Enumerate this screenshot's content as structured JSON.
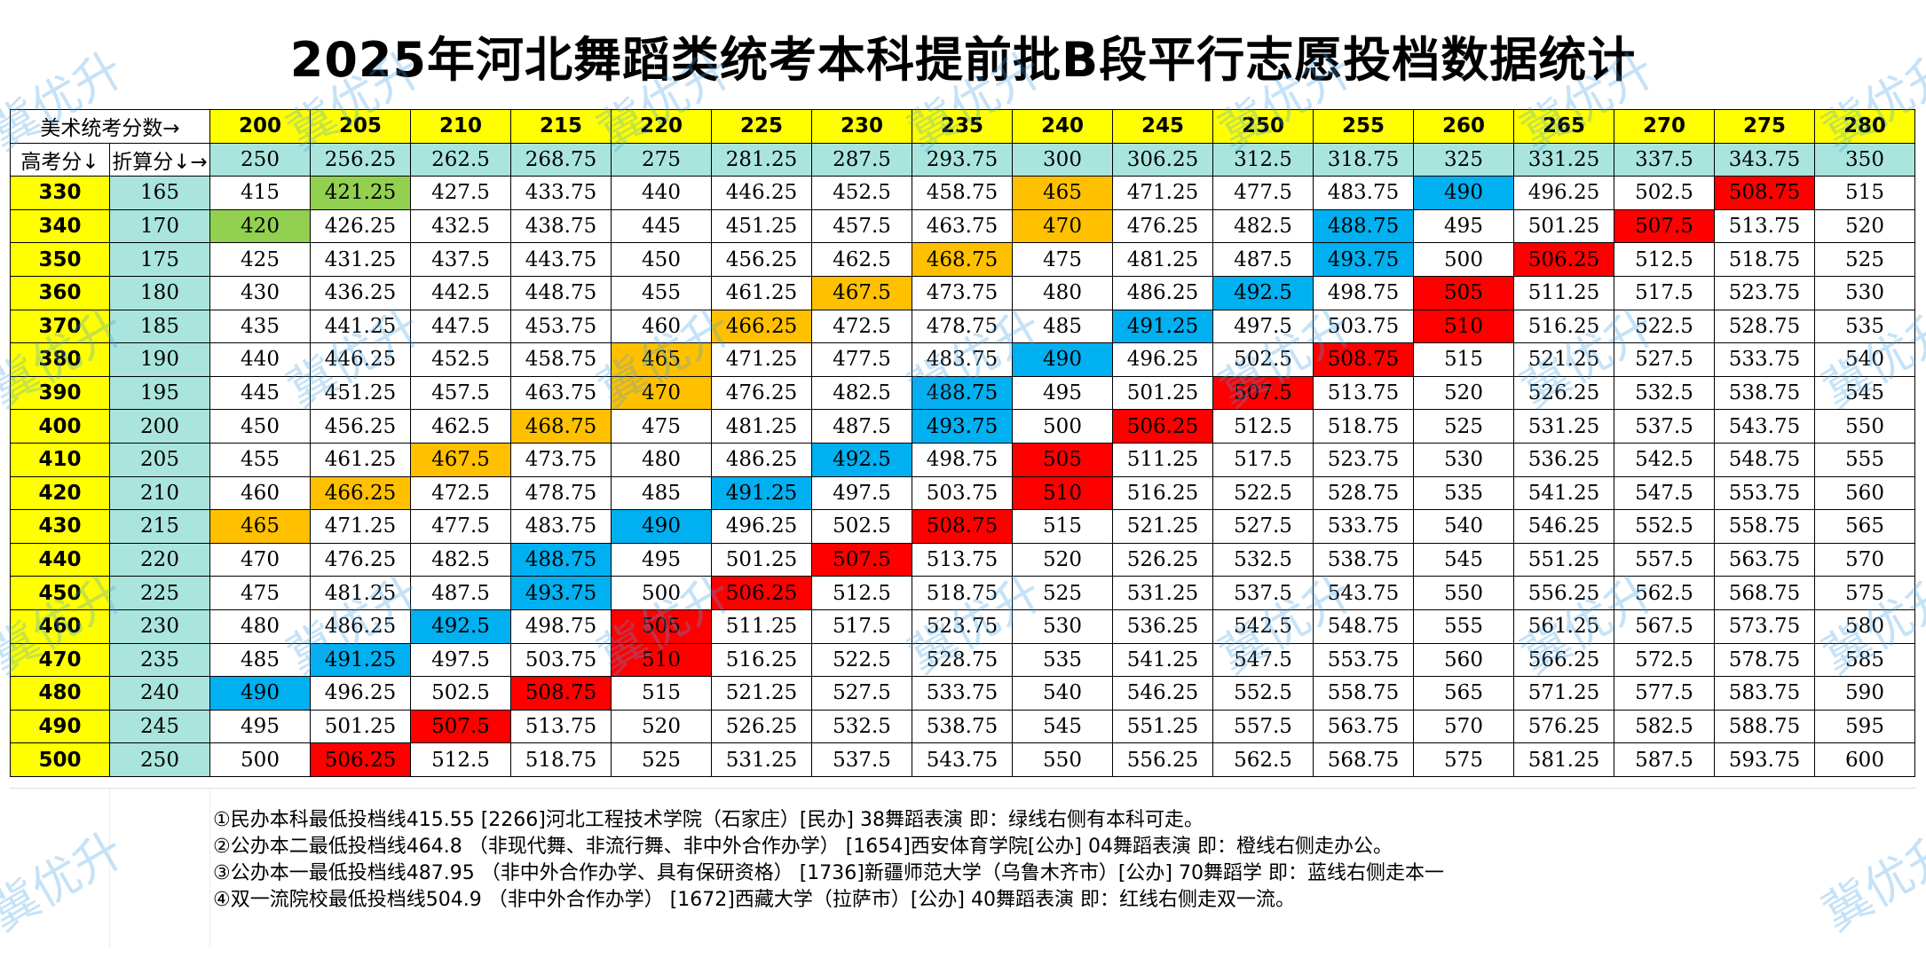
{
  "title": "2025年河北舞蹈类统考本科提前批B段平行志愿投档数据统计",
  "header": {
    "corner_top": "美术统考分数→",
    "corner_gaokao": "高考分↓",
    "corner_zhesuan": "折算分↓→"
  },
  "columns": [
    {
      "art": "200",
      "conv": "250"
    },
    {
      "art": "205",
      "conv": "256.25"
    },
    {
      "art": "210",
      "conv": "262.5"
    },
    {
      "art": "215",
      "conv": "268.75"
    },
    {
      "art": "220",
      "conv": "275"
    },
    {
      "art": "225",
      "conv": "281.25"
    },
    {
      "art": "230",
      "conv": "287.5"
    },
    {
      "art": "235",
      "conv": "293.75"
    },
    {
      "art": "240",
      "conv": "300"
    },
    {
      "art": "245",
      "conv": "306.25"
    },
    {
      "art": "250",
      "conv": "312.5"
    },
    {
      "art": "255",
      "conv": "318.75"
    },
    {
      "art": "260",
      "conv": "325"
    },
    {
      "art": "265",
      "conv": "331.25"
    },
    {
      "art": "270",
      "conv": "337.5"
    },
    {
      "art": "275",
      "conv": "343.75"
    },
    {
      "art": "280",
      "conv": "350"
    }
  ],
  "rows": [
    {
      "gaokao": "330",
      "conv": "165",
      "cells": [
        "415",
        "421.25",
        "427.5",
        "433.75",
        "440",
        "446.25",
        "452.5",
        "458.75",
        "465",
        "471.25",
        "477.5",
        "483.75",
        "490",
        "496.25",
        "502.5",
        "508.75",
        "515"
      ],
      "hl": {
        "1": "green",
        "8": "orange",
        "12": "blue",
        "15": "red"
      }
    },
    {
      "gaokao": "340",
      "conv": "170",
      "cells": [
        "420",
        "426.25",
        "432.5",
        "438.75",
        "445",
        "451.25",
        "457.5",
        "463.75",
        "470",
        "476.25",
        "482.5",
        "488.75",
        "495",
        "501.25",
        "507.5",
        "513.75",
        "520"
      ],
      "hl": {
        "0": "green",
        "8": "orange",
        "11": "blue",
        "14": "red"
      }
    },
    {
      "gaokao": "350",
      "conv": "175",
      "cells": [
        "425",
        "431.25",
        "437.5",
        "443.75",
        "450",
        "456.25",
        "462.5",
        "468.75",
        "475",
        "481.25",
        "487.5",
        "493.75",
        "500",
        "506.25",
        "512.5",
        "518.75",
        "525"
      ],
      "hl": {
        "7": "orange",
        "11": "blue",
        "13": "red"
      }
    },
    {
      "gaokao": "360",
      "conv": "180",
      "cells": [
        "430",
        "436.25",
        "442.5",
        "448.75",
        "455",
        "461.25",
        "467.5",
        "473.75",
        "480",
        "486.25",
        "492.5",
        "498.75",
        "505",
        "511.25",
        "517.5",
        "523.75",
        "530"
      ],
      "hl": {
        "6": "orange",
        "10": "blue",
        "12": "red"
      }
    },
    {
      "gaokao": "370",
      "conv": "185",
      "cells": [
        "435",
        "441.25",
        "447.5",
        "453.75",
        "460",
        "466.25",
        "472.5",
        "478.75",
        "485",
        "491.25",
        "497.5",
        "503.75",
        "510",
        "516.25",
        "522.5",
        "528.75",
        "535"
      ],
      "hl": {
        "5": "orange",
        "9": "blue",
        "12": "red"
      }
    },
    {
      "gaokao": "380",
      "conv": "190",
      "cells": [
        "440",
        "446.25",
        "452.5",
        "458.75",
        "465",
        "471.25",
        "477.5",
        "483.75",
        "490",
        "496.25",
        "502.5",
        "508.75",
        "515",
        "521.25",
        "527.5",
        "533.75",
        "540"
      ],
      "hl": {
        "4": "orange",
        "8": "blue",
        "11": "red"
      }
    },
    {
      "gaokao": "390",
      "conv": "195",
      "cells": [
        "445",
        "451.25",
        "457.5",
        "463.75",
        "470",
        "476.25",
        "482.5",
        "488.75",
        "495",
        "501.25",
        "507.5",
        "513.75",
        "520",
        "526.25",
        "532.5",
        "538.75",
        "545"
      ],
      "hl": {
        "4": "orange",
        "7": "blue",
        "10": "red"
      }
    },
    {
      "gaokao": "400",
      "conv": "200",
      "cells": [
        "450",
        "456.25",
        "462.5",
        "468.75",
        "475",
        "481.25",
        "487.5",
        "493.75",
        "500",
        "506.25",
        "512.5",
        "518.75",
        "525",
        "531.25",
        "537.5",
        "543.75",
        "550"
      ],
      "hl": {
        "3": "orange",
        "7": "blue",
        "9": "red"
      }
    },
    {
      "gaokao": "410",
      "conv": "205",
      "cells": [
        "455",
        "461.25",
        "467.5",
        "473.75",
        "480",
        "486.25",
        "492.5",
        "498.75",
        "505",
        "511.25",
        "517.5",
        "523.75",
        "530",
        "536.25",
        "542.5",
        "548.75",
        "555"
      ],
      "hl": {
        "2": "orange",
        "6": "blue",
        "8": "red"
      }
    },
    {
      "gaokao": "420",
      "conv": "210",
      "cells": [
        "460",
        "466.25",
        "472.5",
        "478.75",
        "485",
        "491.25",
        "497.5",
        "503.75",
        "510",
        "516.25",
        "522.5",
        "528.75",
        "535",
        "541.25",
        "547.5",
        "553.75",
        "560"
      ],
      "hl": {
        "1": "orange",
        "5": "blue",
        "8": "red"
      }
    },
    {
      "gaokao": "430",
      "conv": "215",
      "cells": [
        "465",
        "471.25",
        "477.5",
        "483.75",
        "490",
        "496.25",
        "502.5",
        "508.75",
        "515",
        "521.25",
        "527.5",
        "533.75",
        "540",
        "546.25",
        "552.5",
        "558.75",
        "565"
      ],
      "hl": {
        "0": "orange",
        "4": "blue",
        "7": "red"
      }
    },
    {
      "gaokao": "440",
      "conv": "220",
      "cells": [
        "470",
        "476.25",
        "482.5",
        "488.75",
        "495",
        "501.25",
        "507.5",
        "513.75",
        "520",
        "526.25",
        "532.5",
        "538.75",
        "545",
        "551.25",
        "557.5",
        "563.75",
        "570"
      ],
      "hl": {
        "3": "blue",
        "6": "red"
      }
    },
    {
      "gaokao": "450",
      "conv": "225",
      "cells": [
        "475",
        "481.25",
        "487.5",
        "493.75",
        "500",
        "506.25",
        "512.5",
        "518.75",
        "525",
        "531.25",
        "537.5",
        "543.75",
        "550",
        "556.25",
        "562.5",
        "568.75",
        "575"
      ],
      "hl": {
        "3": "blue",
        "5": "red"
      }
    },
    {
      "gaokao": "460",
      "conv": "230",
      "cells": [
        "480",
        "486.25",
        "492.5",
        "498.75",
        "505",
        "511.25",
        "517.5",
        "523.75",
        "530",
        "536.25",
        "542.5",
        "548.75",
        "555",
        "561.25",
        "567.5",
        "573.75",
        "580"
      ],
      "hl": {
        "2": "blue",
        "4": "red"
      }
    },
    {
      "gaokao": "470",
      "conv": "235",
      "cells": [
        "485",
        "491.25",
        "497.5",
        "503.75",
        "510",
        "516.25",
        "522.5",
        "528.75",
        "535",
        "541.25",
        "547.5",
        "553.75",
        "560",
        "566.25",
        "572.5",
        "578.75",
        "585"
      ],
      "hl": {
        "1": "blue",
        "4": "red"
      }
    },
    {
      "gaokao": "480",
      "conv": "240",
      "cells": [
        "490",
        "496.25",
        "502.5",
        "508.75",
        "515",
        "521.25",
        "527.5",
        "533.75",
        "540",
        "546.25",
        "552.5",
        "558.75",
        "565",
        "571.25",
        "577.5",
        "583.75",
        "590"
      ],
      "hl": {
        "0": "blue",
        "3": "red"
      }
    },
    {
      "gaokao": "490",
      "conv": "245",
      "cells": [
        "495",
        "501.25",
        "507.5",
        "513.75",
        "520",
        "526.25",
        "532.5",
        "538.75",
        "545",
        "551.25",
        "557.5",
        "563.75",
        "570",
        "576.25",
        "582.5",
        "588.75",
        "595"
      ],
      "hl": {
        "2": "red"
      }
    },
    {
      "gaokao": "500",
      "conv": "250",
      "cells": [
        "500",
        "506.25",
        "512.5",
        "518.75",
        "525",
        "531.25",
        "537.5",
        "543.75",
        "550",
        "556.25",
        "562.5",
        "568.75",
        "575",
        "581.25",
        "587.5",
        "593.75",
        "600"
      ],
      "hl": {
        "1": "red"
      }
    }
  ],
  "notes": [
    "①民办本科最低投档线415.55  [2266]河北工程技术学院（石家庄）[民办] 38舞蹈表演  即：绿线右侧有本科可走。",
    "②公办本二最低投档线464.8 （非现代舞、非流行舞、非中外合作办学） [1654]西安体育学院[公办] 04舞蹈表演  即：橙线右侧走办公。",
    "③公办本一最低投档线487.95 （非中外合作办学、具有保研资格） [1736]新疆师范大学（乌鲁木齐市）[公办] 70舞蹈学  即：蓝线右侧走本一",
    "④双一流院校最低投档线504.9 （非中外合作办学） [1672]西藏大学（拉萨市）[公办] 40舞蹈表演  即：红线右侧走双一流。"
  ],
  "watermark": "冀优升",
  "colors": {
    "yellow": "#ffff00",
    "teal": "#a9e5dc",
    "green": "#92d050",
    "orange": "#ffc000",
    "blue": "#00b0f0",
    "red": "#ff0000"
  }
}
